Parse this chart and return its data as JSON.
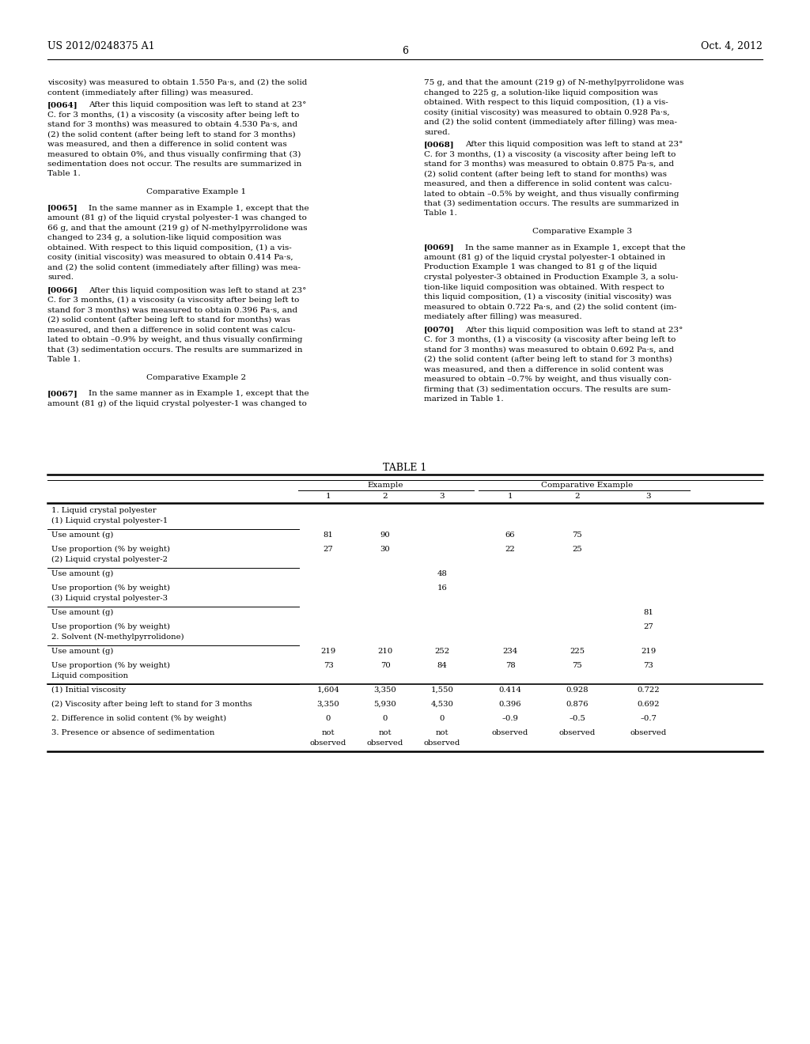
{
  "background_color": "#ffffff",
  "header_left": "US 2012/0248375 A1",
  "header_right": "Oct. 4, 2012",
  "page_number": "6"
}
